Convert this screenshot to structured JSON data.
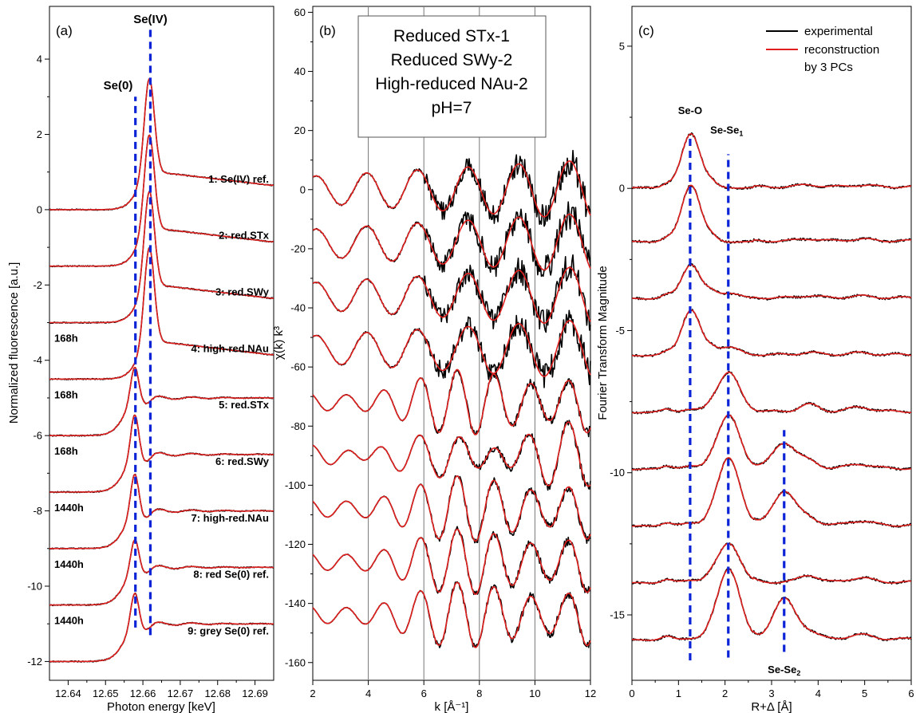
{
  "figure": {
    "panels": [
      {
        "key": "a",
        "label": "(a)"
      },
      {
        "key": "b",
        "label": "(b)"
      },
      {
        "key": "c",
        "label": "(c)"
      }
    ],
    "info_box": [
      "Reduced STx-1",
      "Reduced SWy-2",
      "High-reduced NAu-2",
      "pH=7"
    ],
    "legend": {
      "experimental": "experimental",
      "reconstruction": [
        "reconstruction",
        "by 3 PCs"
      ]
    },
    "colors": {
      "experimental": "#000000",
      "reconstruction": "#e0201e",
      "markers": "#0a23d6"
    }
  },
  "chart_data": [
    {
      "type": "line",
      "panel": "(a)",
      "xlabel": "Photon energy [keV]",
      "ylabel": "Normalized fluorescence [a.u.]",
      "xlim": [
        12.635,
        12.695
      ],
      "ylim": [
        -12.5,
        5.4
      ],
      "xticks": [
        12.64,
        12.65,
        12.66,
        12.67,
        12.68,
        12.69
      ],
      "yticks": [
        4,
        2,
        0,
        -2,
        -4,
        -6,
        -8,
        -10,
        -12
      ],
      "peak_markers": [
        {
          "label": "Se(IV)",
          "x": 12.662,
          "y": [
            -11.3,
            4.8
          ]
        },
        {
          "label": "Se(0)",
          "x": 12.658,
          "y": [
            -11.1,
            3.0
          ]
        }
      ],
      "spectra": [
        {
          "label": "1: Se(IV) ref.",
          "offset": 0,
          "kind": "se4",
          "strength": 1.0
        },
        {
          "label": "2: red.STx",
          "offset": -1.5,
          "kind": "se4",
          "strength": 1.0
        },
        {
          "label": "3: red.SWy",
          "time": "168h",
          "offset": -3.0,
          "kind": "se4",
          "strength": 1.0
        },
        {
          "label": "4: high-red.NAu",
          "time": "168h",
          "offset": -4.5,
          "kind": "se4",
          "strength": 1.0
        },
        {
          "label": "5: red.STx",
          "time": "168h",
          "offset": -6.0,
          "kind": "se0",
          "strength": 0.6
        },
        {
          "label": "6: red.SWy",
          "time": "1440h",
          "offset": -7.5,
          "kind": "se0",
          "strength": 0.75
        },
        {
          "label": "7: high-red.NAu",
          "time": "1440h",
          "offset": -9.0,
          "kind": "se0",
          "strength": 0.7
        },
        {
          "label": "8: red Se(0) ref.",
          "time": "1440h",
          "offset": -10.5,
          "kind": "se0",
          "strength": 0.55
        },
        {
          "label": "9: grey Se(0) ref.",
          "offset": -12.0,
          "kind": "se0",
          "strength": 0.6
        }
      ],
      "series": [
        {
          "name": "experimental"
        },
        {
          "name": "reconstruction by 3 PCs"
        }
      ]
    },
    {
      "type": "line",
      "panel": "(b)",
      "xlabel": "k [Å⁻¹]",
      "ylabel": "χ(k) k³",
      "xlim": [
        2,
        12
      ],
      "ylim": [
        -166,
        62
      ],
      "xticks": [
        2,
        4,
        6,
        8,
        10,
        12
      ],
      "yticks": [
        60,
        40,
        20,
        0,
        -20,
        -40,
        -60,
        -80,
        -100,
        -120,
        -140,
        -160
      ],
      "grid_x": [
        4,
        6,
        8,
        10
      ],
      "offsets": [
        0,
        -18,
        -36,
        -54,
        -72,
        -90,
        -108,
        -126,
        -144
      ],
      "kinds": [
        "se4",
        "se4",
        "se4",
        "se4",
        "se0",
        "mix",
        "se0",
        "se0",
        "se0"
      ],
      "series": [
        {
          "name": "experimental"
        },
        {
          "name": "reconstruction by 3 PCs"
        }
      ]
    },
    {
      "type": "line",
      "panel": "(c)",
      "xlabel": "R+Δ [Å]",
      "ylabel": "Fourier Transform Magnitude",
      "xlim": [
        0,
        6
      ],
      "ylim": [
        -17.3,
        6.4
      ],
      "xticks": [
        0,
        1,
        2,
        3,
        4,
        5,
        6
      ],
      "yticks": [
        5,
        0,
        -5,
        -10,
        -15
      ],
      "offsets": [
        0,
        -1.9,
        -3.9,
        -5.9,
        -7.9,
        -9.9,
        -11.9,
        -13.9,
        -15.9
      ],
      "peaks": {
        "se_o": [
          1.9,
          2.0,
          1.2,
          1.6,
          0.1,
          0.1,
          0.1,
          0.1,
          0.05
        ],
        "se_se1": [
          0,
          0,
          0.2,
          0.3,
          1.4,
          1.9,
          2.4,
          1.4,
          2.5
        ],
        "se_se2": [
          0,
          0,
          0,
          0,
          0,
          0.9,
          1.2,
          0,
          1.4
        ]
      },
      "markers": [
        {
          "label": "Se-O",
          "x": 1.25,
          "y": [
            -16.6,
            1.8
          ]
        },
        {
          "label": "Se-Se",
          "sub": "1",
          "x": 2.07,
          "y": [
            -16.5,
            1.2
          ]
        },
        {
          "label": "Se-Se",
          "sub": "2",
          "x": 3.27,
          "y": [
            -16.3,
            -8.5
          ]
        }
      ],
      "series": [
        {
          "name": "experimental"
        },
        {
          "name": "reconstruction by 3 PCs"
        }
      ]
    }
  ]
}
